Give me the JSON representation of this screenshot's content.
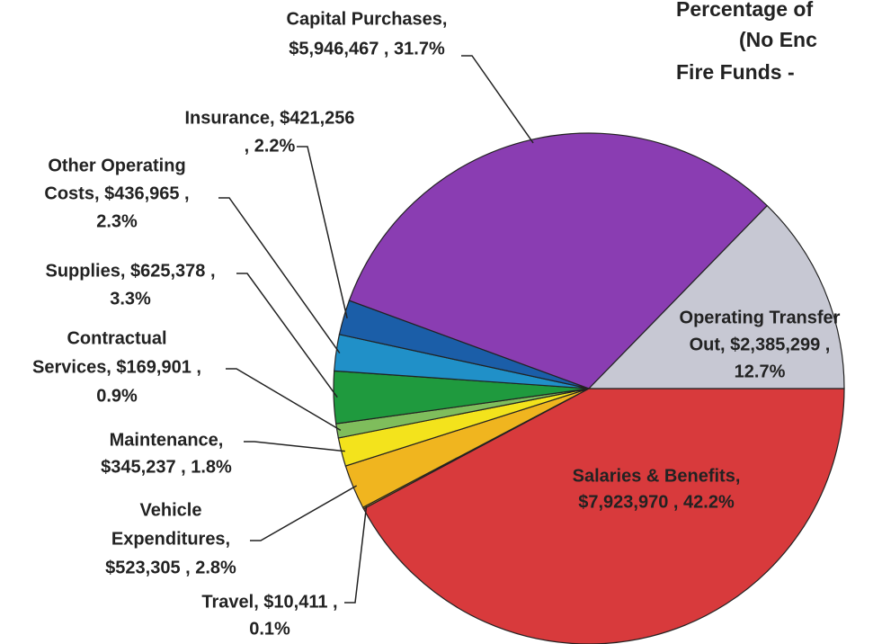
{
  "chart_data": {
    "type": "pie",
    "title": [
      "Percentage of",
      "(No Enc",
      "Fire Funds -"
    ],
    "categories": [
      "Salaries & Benefits",
      "Travel",
      "Vehicle Expenditures",
      "Maintenance",
      "Contractual Services",
      "Supplies",
      "Other Operating Costs",
      "Insurance",
      "Capital Purchases",
      "Operating Transfer Out"
    ],
    "values": [
      42.2,
      0.1,
      2.8,
      1.8,
      0.9,
      3.3,
      2.3,
      2.2,
      31.7,
      12.7
    ],
    "labels": [
      [
        "Salaries & Benefits,",
        "$7,923,970 , 42.2%"
      ],
      [
        "Travel, $10,411 ,",
        "0.1%"
      ],
      [
        "Vehicle",
        "Expenditures,",
        "$523,305 , 2.8%"
      ],
      [
        "Maintenance,",
        "$345,237 , 1.8%"
      ],
      [
        "Contractual",
        "Services, $169,901 ,",
        "0.9%"
      ],
      [
        "Supplies, $625,378 ,",
        "3.3%"
      ],
      [
        "Other Operating",
        "Costs, $436,965 ,",
        "2.3%"
      ],
      [
        "Insurance, $421,256",
        ", 2.2%"
      ],
      [
        "Capital Purchases,",
        "$5,946,467 , 31.7%"
      ],
      [
        "Operating Transfer",
        "Out, $2,385,299 ,",
        "12.7%"
      ]
    ],
    "colors": [
      "#d83a3c",
      "#c9a21e",
      "#f0b51f",
      "#f3e31c",
      "#7fbd5c",
      "#1f9a3e",
      "#2090c8",
      "#1b5ea8",
      "#8a3db2",
      "#c7c8d3"
    ]
  }
}
